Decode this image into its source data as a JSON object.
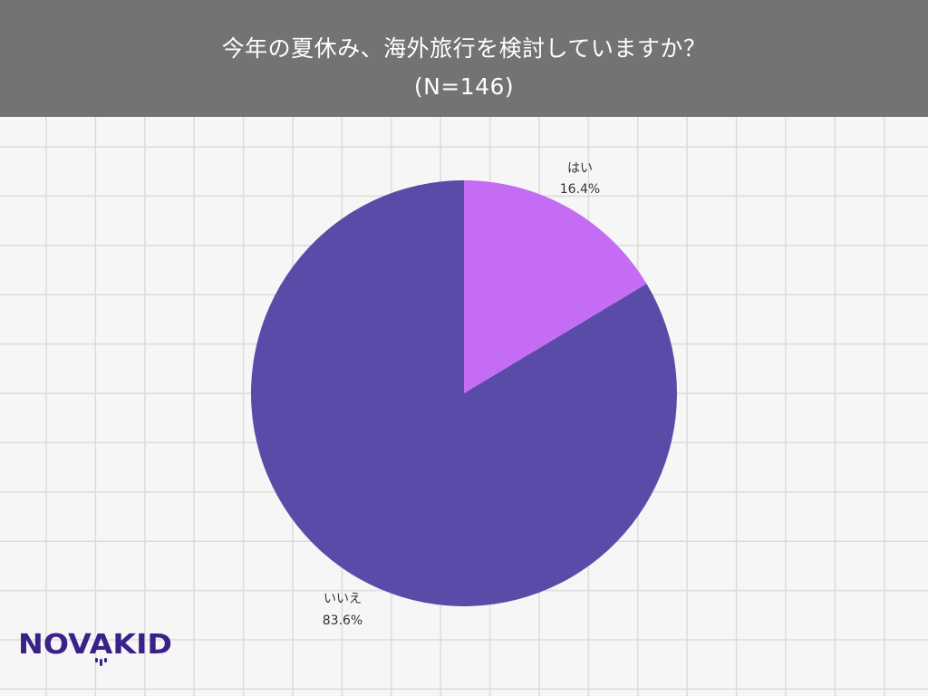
{
  "header": {
    "title_line1": "今年の夏休み、海外旅行を検討していますか？",
    "title_line2": "(N=146)"
  },
  "colors": {
    "header_bg": "#737373",
    "background": "#f6f6f6",
    "grid": "#dcdcdc",
    "yes": "#c46cf4",
    "no": "#5a4ba8",
    "logo": "#3a2189"
  },
  "chart_data": {
    "type": "pie",
    "title": "今年の夏休み、海外旅行を検討していますか？ (N=146)",
    "categories": [
      "はい",
      "いいえ"
    ],
    "values": [
      16.4,
      83.6
    ],
    "value_labels": [
      "16.4%",
      "83.6%"
    ],
    "start_angle_deg": 0,
    "direction": "clockwise",
    "legend": "none",
    "grid": true
  },
  "logo": {
    "text": "NOVAKID"
  }
}
